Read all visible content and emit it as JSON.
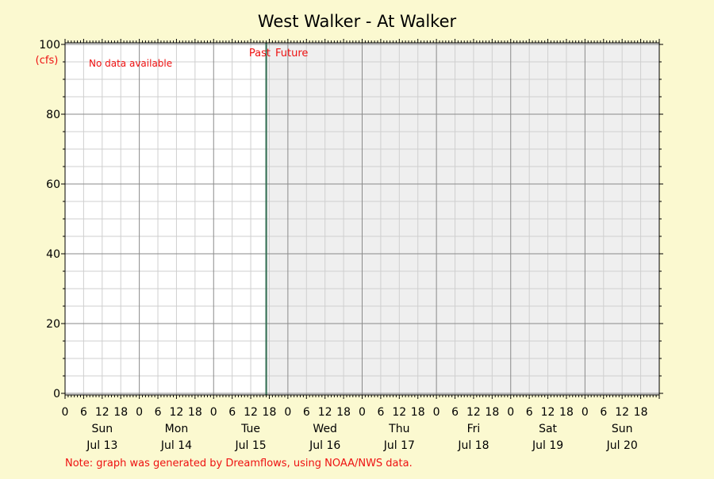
{
  "chart_data": {
    "type": "line",
    "title": "West Walker - At Walker",
    "y_unit_label": "(cfs)",
    "ylim": [
      0,
      100
    ],
    "y_major_ticks": [
      0,
      20,
      40,
      60,
      80,
      100
    ],
    "hours_per_day_ticks": [
      "0",
      "6",
      "12",
      "18"
    ],
    "days": [
      {
        "weekday": "Sun",
        "date": "Jul 13"
      },
      {
        "weekday": "Mon",
        "date": "Jul 14"
      },
      {
        "weekday": "Tue",
        "date": "Jul 15"
      },
      {
        "weekday": "Wed",
        "date": "Jul 16"
      },
      {
        "weekday": "Thu",
        "date": "Jul 17"
      },
      {
        "weekday": "Fri",
        "date": "Jul 18"
      },
      {
        "weekday": "Sat",
        "date": "Jul 19"
      },
      {
        "weekday": "Sun",
        "date": "Jul 20"
      }
    ],
    "now_marker": {
      "day": "Jul 15",
      "hour": 17
    },
    "past_label": "Past",
    "future_label": "Future",
    "no_data_message": "No data available",
    "series": [],
    "grid": true,
    "colors": {
      "background": "#fbf9d0",
      "plot_past": "#ffffff",
      "plot_future": "#efefef",
      "now_line": "#2e6b4f",
      "annotation": "#ee1111"
    }
  },
  "footer_note": "Note: graph was generated by Dreamflows, using NOAA/NWS data."
}
